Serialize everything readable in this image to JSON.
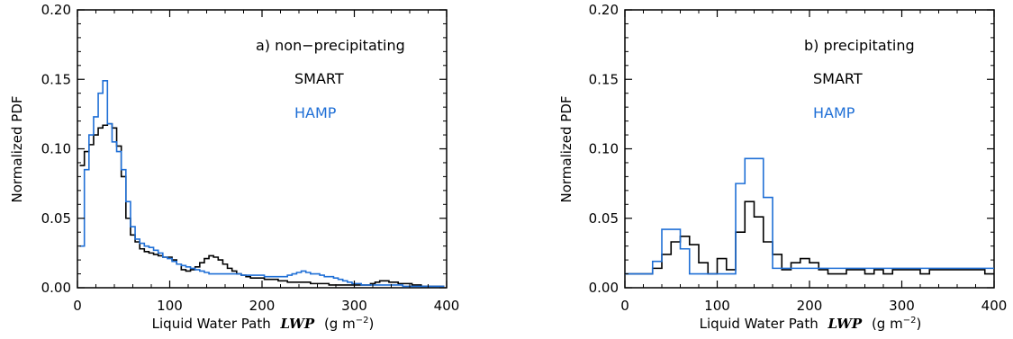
{
  "chart_data": [
    {
      "type": "line",
      "panel_label": "a) non−precipitating",
      "xlabel": "Liquid Water Path",
      "xlabel_var": "LWP",
      "xlabel_unit_left": "(g m",
      "xlabel_unit_exp": "−2",
      "xlabel_unit_right": ")",
      "ylabel": "Normalized PDF",
      "xlim": [
        0,
        400
      ],
      "ylim": [
        0,
        0.2
      ],
      "xticks": [
        0,
        100,
        200,
        300,
        400
      ],
      "xtick_labels": [
        "0",
        "100",
        "200",
        "300",
        "400"
      ],
      "yticks": [
        0,
        0.05,
        0.1,
        0.15,
        0.2
      ],
      "ytick_labels": [
        "0.00",
        "0.05",
        "0.10",
        "0.15",
        "0.20"
      ],
      "legend_position": "top-right",
      "step": true,
      "series": [
        {
          "name": "SMART",
          "color": "#000000",
          "x": [
            5,
            10,
            15,
            20,
            25,
            30,
            35,
            40,
            45,
            50,
            55,
            60,
            65,
            70,
            75,
            80,
            85,
            90,
            95,
            100,
            105,
            110,
            115,
            120,
            125,
            130,
            135,
            140,
            145,
            150,
            155,
            160,
            165,
            170,
            175,
            180,
            185,
            190,
            195,
            200,
            205,
            210,
            215,
            220,
            225,
            230,
            235,
            240,
            245,
            250,
            255,
            260,
            265,
            270,
            275,
            280,
            285,
            290,
            295,
            300,
            305,
            310,
            315,
            320,
            325,
            330,
            335,
            340,
            345,
            350,
            355,
            360,
            365,
            370,
            375,
            380,
            385,
            390,
            395
          ],
          "y": [
            0.088,
            0.098,
            0.103,
            0.11,
            0.115,
            0.117,
            0.118,
            0.115,
            0.102,
            0.08,
            0.05,
            0.038,
            0.033,
            0.028,
            0.026,
            0.025,
            0.024,
            0.023,
            0.022,
            0.022,
            0.02,
            0.017,
            0.013,
            0.012,
            0.013,
            0.015,
            0.018,
            0.021,
            0.023,
            0.022,
            0.02,
            0.017,
            0.014,
            0.012,
            0.01,
            0.009,
            0.008,
            0.007,
            0.007,
            0.007,
            0.006,
            0.006,
            0.006,
            0.005,
            0.005,
            0.004,
            0.004,
            0.004,
            0.004,
            0.004,
            0.003,
            0.003,
            0.003,
            0.003,
            0.002,
            0.002,
            0.002,
            0.002,
            0.002,
            0.002,
            0.002,
            0.002,
            0.002,
            0.003,
            0.004,
            0.005,
            0.005,
            0.004,
            0.004,
            0.003,
            0.003,
            0.003,
            0.002,
            0.002,
            0.001,
            0.001,
            0.001,
            0.001,
            0.001
          ]
        },
        {
          "name": "HAMP",
          "color": "#1f6fd6",
          "x": [
            5,
            10,
            15,
            20,
            25,
            30,
            35,
            40,
            45,
            50,
            55,
            60,
            65,
            70,
            75,
            80,
            85,
            90,
            95,
            100,
            105,
            110,
            115,
            120,
            125,
            130,
            135,
            140,
            145,
            150,
            155,
            160,
            165,
            170,
            175,
            180,
            185,
            190,
            195,
            200,
            205,
            210,
            215,
            220,
            225,
            230,
            235,
            240,
            245,
            250,
            255,
            260,
            265,
            270,
            275,
            280,
            285,
            290,
            295,
            300,
            305,
            310,
            315,
            320,
            325,
            330,
            335,
            340,
            345,
            350,
            355,
            360,
            365,
            370,
            375,
            380,
            385,
            390,
            395
          ],
          "y": [
            0.03,
            0.085,
            0.11,
            0.123,
            0.14,
            0.149,
            0.118,
            0.105,
            0.098,
            0.085,
            0.062,
            0.044,
            0.035,
            0.032,
            0.03,
            0.029,
            0.027,
            0.025,
            0.022,
            0.021,
            0.019,
            0.017,
            0.016,
            0.015,
            0.014,
            0.013,
            0.012,
            0.011,
            0.01,
            0.01,
            0.01,
            0.01,
            0.01,
            0.01,
            0.01,
            0.009,
            0.009,
            0.009,
            0.009,
            0.009,
            0.008,
            0.008,
            0.008,
            0.008,
            0.008,
            0.009,
            0.01,
            0.011,
            0.012,
            0.011,
            0.01,
            0.01,
            0.009,
            0.008,
            0.008,
            0.007,
            0.006,
            0.005,
            0.004,
            0.003,
            0.003,
            0.002,
            0.002,
            0.002,
            0.002,
            0.002,
            0.002,
            0.002,
            0.002,
            0.002,
            0.001,
            0.001,
            0.001,
            0.001,
            0.001,
            0.001,
            0.001,
            0.001,
            0.001
          ]
        }
      ]
    },
    {
      "type": "line",
      "panel_label": "b) precipitating",
      "xlabel": "Liquid Water Path",
      "xlabel_var": "LWP",
      "xlabel_unit_left": "(g m",
      "xlabel_unit_exp": "−2",
      "xlabel_unit_right": ")",
      "ylabel": "Normalized PDF",
      "xlim": [
        0,
        400
      ],
      "ylim": [
        0,
        0.2
      ],
      "xticks": [
        0,
        100,
        200,
        300,
        400
      ],
      "xtick_labels": [
        "0",
        "100",
        "200",
        "300",
        "400"
      ],
      "yticks": [
        0,
        0.05,
        0.1,
        0.15,
        0.2
      ],
      "ytick_labels": [
        "0.00",
        "0.05",
        "0.10",
        "0.15",
        "0.20"
      ],
      "legend_position": "top-right",
      "step": true,
      "series": [
        {
          "name": "SMART",
          "color": "#000000",
          "x": [
            5,
            15,
            25,
            35,
            45,
            55,
            65,
            75,
            85,
            95,
            105,
            115,
            125,
            135,
            145,
            155,
            165,
            175,
            185,
            195,
            205,
            215,
            225,
            235,
            245,
            255,
            265,
            275,
            285,
            295,
            305,
            315,
            325,
            335,
            345,
            355,
            365,
            375,
            385,
            395
          ],
          "y": [
            0.01,
            0.01,
            0.01,
            0.014,
            0.024,
            0.033,
            0.037,
            0.031,
            0.018,
            0.01,
            0.021,
            0.013,
            0.04,
            0.062,
            0.051,
            0.033,
            0.024,
            0.013,
            0.018,
            0.021,
            0.018,
            0.013,
            0.01,
            0.01,
            0.013,
            0.013,
            0.01,
            0.013,
            0.01,
            0.013,
            0.013,
            0.013,
            0.01,
            0.013,
            0.013,
            0.013,
            0.013,
            0.013,
            0.013,
            0.01
          ]
        },
        {
          "name": "HAMP",
          "color": "#1f6fd6",
          "x": [
            5,
            15,
            25,
            35,
            45,
            55,
            65,
            75,
            85,
            95,
            105,
            115,
            125,
            135,
            145,
            155,
            165,
            175,
            185,
            195,
            205,
            215,
            225,
            235,
            245,
            255,
            265,
            275,
            285,
            295,
            305,
            315,
            325,
            335,
            345,
            355,
            365,
            375,
            385,
            395
          ],
          "y": [
            0.01,
            0.01,
            0.01,
            0.019,
            0.042,
            0.042,
            0.028,
            0.01,
            0.01,
            0.01,
            0.01,
            0.01,
            0.075,
            0.093,
            0.093,
            0.065,
            0.014,
            0.014,
            0.014,
            0.014,
            0.014,
            0.014,
            0.014,
            0.014,
            0.014,
            0.014,
            0.014,
            0.014,
            0.014,
            0.014,
            0.014,
            0.014,
            0.014,
            0.014,
            0.014,
            0.014,
            0.014,
            0.014,
            0.014,
            0.014
          ]
        }
      ]
    }
  ]
}
